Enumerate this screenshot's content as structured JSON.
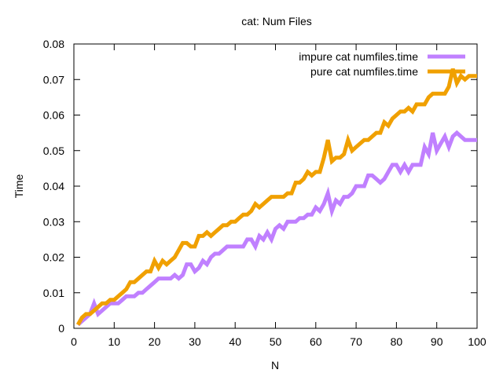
{
  "chart_data": {
    "type": "line",
    "title": "cat: Num Files",
    "xlabel": "N",
    "ylabel": "Time",
    "xlim": [
      0,
      100
    ],
    "ylim": [
      0,
      0.08
    ],
    "xticks": [
      0,
      10,
      20,
      30,
      40,
      50,
      60,
      70,
      80,
      90,
      100
    ],
    "xtick_labels": [
      "0",
      "10",
      "20",
      "30",
      "40",
      "50",
      "60",
      "70",
      "80",
      "90",
      "100"
    ],
    "yticks": [
      0,
      0.01,
      0.02,
      0.03,
      0.04,
      0.05,
      0.06,
      0.07,
      0.08
    ],
    "ytick_labels": [
      "0",
      "0.01",
      "0.02",
      "0.03",
      "0.04",
      "0.05",
      "0.06",
      "0.07",
      "0.08"
    ],
    "grid": false,
    "legend_position": "top-right",
    "series": [
      {
        "name": "impure cat numfiles.time",
        "color": "#c080ff",
        "x": [
          1,
          2,
          3,
          4,
          5,
          6,
          7,
          8,
          9,
          10,
          11,
          12,
          13,
          14,
          15,
          16,
          17,
          18,
          19,
          20,
          21,
          22,
          23,
          24,
          25,
          26,
          27,
          28,
          29,
          30,
          31,
          32,
          33,
          34,
          35,
          36,
          37,
          38,
          39,
          40,
          41,
          42,
          43,
          44,
          45,
          46,
          47,
          48,
          49,
          50,
          51,
          52,
          53,
          54,
          55,
          56,
          57,
          58,
          59,
          60,
          61,
          62,
          63,
          64,
          65,
          66,
          67,
          68,
          69,
          70,
          71,
          72,
          73,
          74,
          75,
          76,
          77,
          78,
          79,
          80,
          81,
          82,
          83,
          84,
          85,
          86,
          87,
          88,
          89,
          90,
          91,
          92,
          93,
          94,
          95,
          96,
          97,
          98,
          99,
          100
        ],
        "y": [
          0.001,
          0.002,
          0.003,
          0.004,
          0.007,
          0.004,
          0.005,
          0.006,
          0.007,
          0.007,
          0.007,
          0.008,
          0.009,
          0.009,
          0.009,
          0.01,
          0.01,
          0.011,
          0.012,
          0.013,
          0.014,
          0.014,
          0.014,
          0.014,
          0.015,
          0.014,
          0.015,
          0.018,
          0.018,
          0.016,
          0.017,
          0.019,
          0.018,
          0.02,
          0.021,
          0.021,
          0.022,
          0.023,
          0.023,
          0.023,
          0.023,
          0.023,
          0.025,
          0.025,
          0.023,
          0.026,
          0.025,
          0.027,
          0.025,
          0.028,
          0.029,
          0.028,
          0.03,
          0.03,
          0.03,
          0.031,
          0.031,
          0.032,
          0.032,
          0.034,
          0.033,
          0.035,
          0.038,
          0.033,
          0.036,
          0.035,
          0.037,
          0.037,
          0.038,
          0.04,
          0.04,
          0.04,
          0.043,
          0.043,
          0.042,
          0.041,
          0.042,
          0.044,
          0.046,
          0.046,
          0.044,
          0.046,
          0.044,
          0.046,
          0.046,
          0.046,
          0.051,
          0.049,
          0.055,
          0.05,
          0.052,
          0.054,
          0.051,
          0.054,
          0.055,
          0.054,
          0.053,
          0.053,
          0.053,
          0.053
        ]
      },
      {
        "name": "pure cat numfiles.time",
        "color": "#f0a000",
        "x": [
          1,
          2,
          3,
          4,
          5,
          6,
          7,
          8,
          9,
          10,
          11,
          12,
          13,
          14,
          15,
          16,
          17,
          18,
          19,
          20,
          21,
          22,
          23,
          24,
          25,
          26,
          27,
          28,
          29,
          30,
          31,
          32,
          33,
          34,
          35,
          36,
          37,
          38,
          39,
          40,
          41,
          42,
          43,
          44,
          45,
          46,
          47,
          48,
          49,
          50,
          51,
          52,
          53,
          54,
          55,
          56,
          57,
          58,
          59,
          60,
          61,
          62,
          63,
          64,
          65,
          66,
          67,
          68,
          69,
          70,
          71,
          72,
          73,
          74,
          75,
          76,
          77,
          78,
          79,
          80,
          81,
          82,
          83,
          84,
          85,
          86,
          87,
          88,
          89,
          90,
          91,
          92,
          93,
          94,
          95,
          96,
          97,
          98,
          99,
          100
        ],
        "y": [
          0.001,
          0.003,
          0.004,
          0.004,
          0.005,
          0.006,
          0.007,
          0.007,
          0.008,
          0.008,
          0.009,
          0.01,
          0.011,
          0.013,
          0.013,
          0.014,
          0.015,
          0.016,
          0.016,
          0.019,
          0.017,
          0.019,
          0.018,
          0.019,
          0.02,
          0.022,
          0.024,
          0.024,
          0.023,
          0.023,
          0.026,
          0.026,
          0.027,
          0.026,
          0.027,
          0.028,
          0.029,
          0.029,
          0.03,
          0.03,
          0.031,
          0.032,
          0.032,
          0.033,
          0.035,
          0.034,
          0.035,
          0.036,
          0.037,
          0.037,
          0.037,
          0.037,
          0.038,
          0.038,
          0.041,
          0.041,
          0.042,
          0.044,
          0.043,
          0.044,
          0.044,
          0.048,
          0.053,
          0.047,
          0.048,
          0.048,
          0.049,
          0.053,
          0.05,
          0.051,
          0.052,
          0.053,
          0.053,
          0.054,
          0.055,
          0.055,
          0.058,
          0.057,
          0.059,
          0.06,
          0.061,
          0.061,
          0.062,
          0.061,
          0.063,
          0.063,
          0.063,
          0.065,
          0.066,
          0.066,
          0.066,
          0.066,
          0.068,
          0.073,
          0.069,
          0.071,
          0.07,
          0.071,
          0.071,
          0.071
        ]
      }
    ]
  }
}
